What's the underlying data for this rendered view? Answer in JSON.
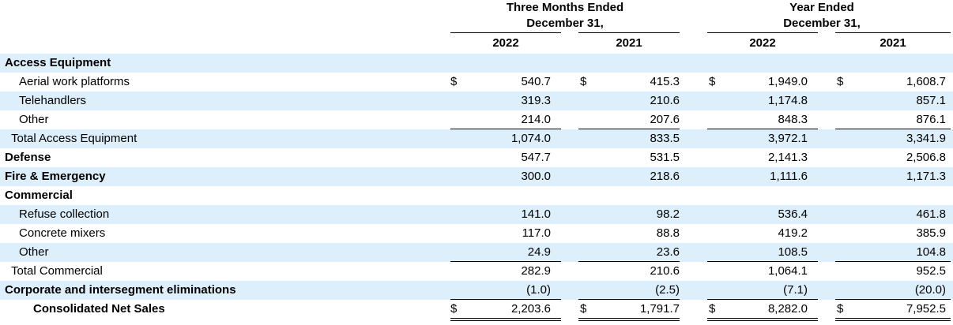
{
  "headers": {
    "group_three_months": [
      "Three Months Ended",
      "December 31,"
    ],
    "group_year": [
      "Year Ended",
      "December 31,"
    ],
    "years": [
      "2022",
      "2021",
      "2022",
      "2021"
    ]
  },
  "currency_symbol": "$",
  "rows": [
    {
      "label": "Access Equipment",
      "bold": true,
      "indent": 1,
      "values": [
        "",
        "",
        "",
        ""
      ],
      "shade": true
    },
    {
      "label": "Aerial work platforms",
      "indent": 3,
      "values": [
        "540.7",
        "415.3",
        "1,949.0",
        "1,608.7"
      ],
      "currency": true,
      "shade": false
    },
    {
      "label": "Telehandlers",
      "indent": 3,
      "values": [
        "319.3",
        "210.6",
        "1,174.8",
        "857.1"
      ],
      "shade": true
    },
    {
      "label": "Other",
      "indent": 3,
      "values": [
        "214.0",
        "207.6",
        "848.3",
        "876.1"
      ],
      "shade": false,
      "rule_below": true
    },
    {
      "label": "Total Access Equipment",
      "indent": 2,
      "values": [
        "1,074.0",
        "833.5",
        "3,972.1",
        "3,341.9"
      ],
      "shade": true
    },
    {
      "label": "Defense",
      "bold": true,
      "indent": 1,
      "values": [
        "547.7",
        "531.5",
        "2,141.3",
        "2,506.8"
      ],
      "shade": false
    },
    {
      "label": "Fire & Emergency",
      "bold": true,
      "indent": 1,
      "values": [
        "300.0",
        "218.6",
        "1,111.6",
        "1,171.3"
      ],
      "shade": true
    },
    {
      "label": "Commercial",
      "bold": true,
      "indent": 1,
      "values": [
        "",
        "",
        "",
        ""
      ],
      "shade": false
    },
    {
      "label": "Refuse collection",
      "indent": 3,
      "values": [
        "141.0",
        "98.2",
        "536.4",
        "461.8"
      ],
      "shade": true
    },
    {
      "label": "Concrete mixers",
      "indent": 3,
      "values": [
        "117.0",
        "88.8",
        "419.2",
        "385.9"
      ],
      "shade": false
    },
    {
      "label": "Other",
      "indent": 3,
      "values": [
        "24.9",
        "23.6",
        "108.5",
        "104.8"
      ],
      "shade": true,
      "rule_below": true
    },
    {
      "label": "Total Commercial",
      "indent": 2,
      "values": [
        "282.9",
        "210.6",
        "1,064.1",
        "952.5"
      ],
      "shade": false
    },
    {
      "label": "Corporate and intersegment eliminations",
      "bold": true,
      "indent": 1,
      "values": [
        "(1.0)",
        "(2.5)",
        "(7.1)",
        "(20.0)"
      ],
      "shade": true,
      "rule_below": true
    },
    {
      "label": "Consolidated Net Sales",
      "bold": true,
      "indent": 4,
      "values": [
        "2,203.6",
        "1,791.7",
        "8,282.0",
        "7,952.5"
      ],
      "currency": true,
      "shade": false,
      "double_rule_below": true
    }
  ]
}
